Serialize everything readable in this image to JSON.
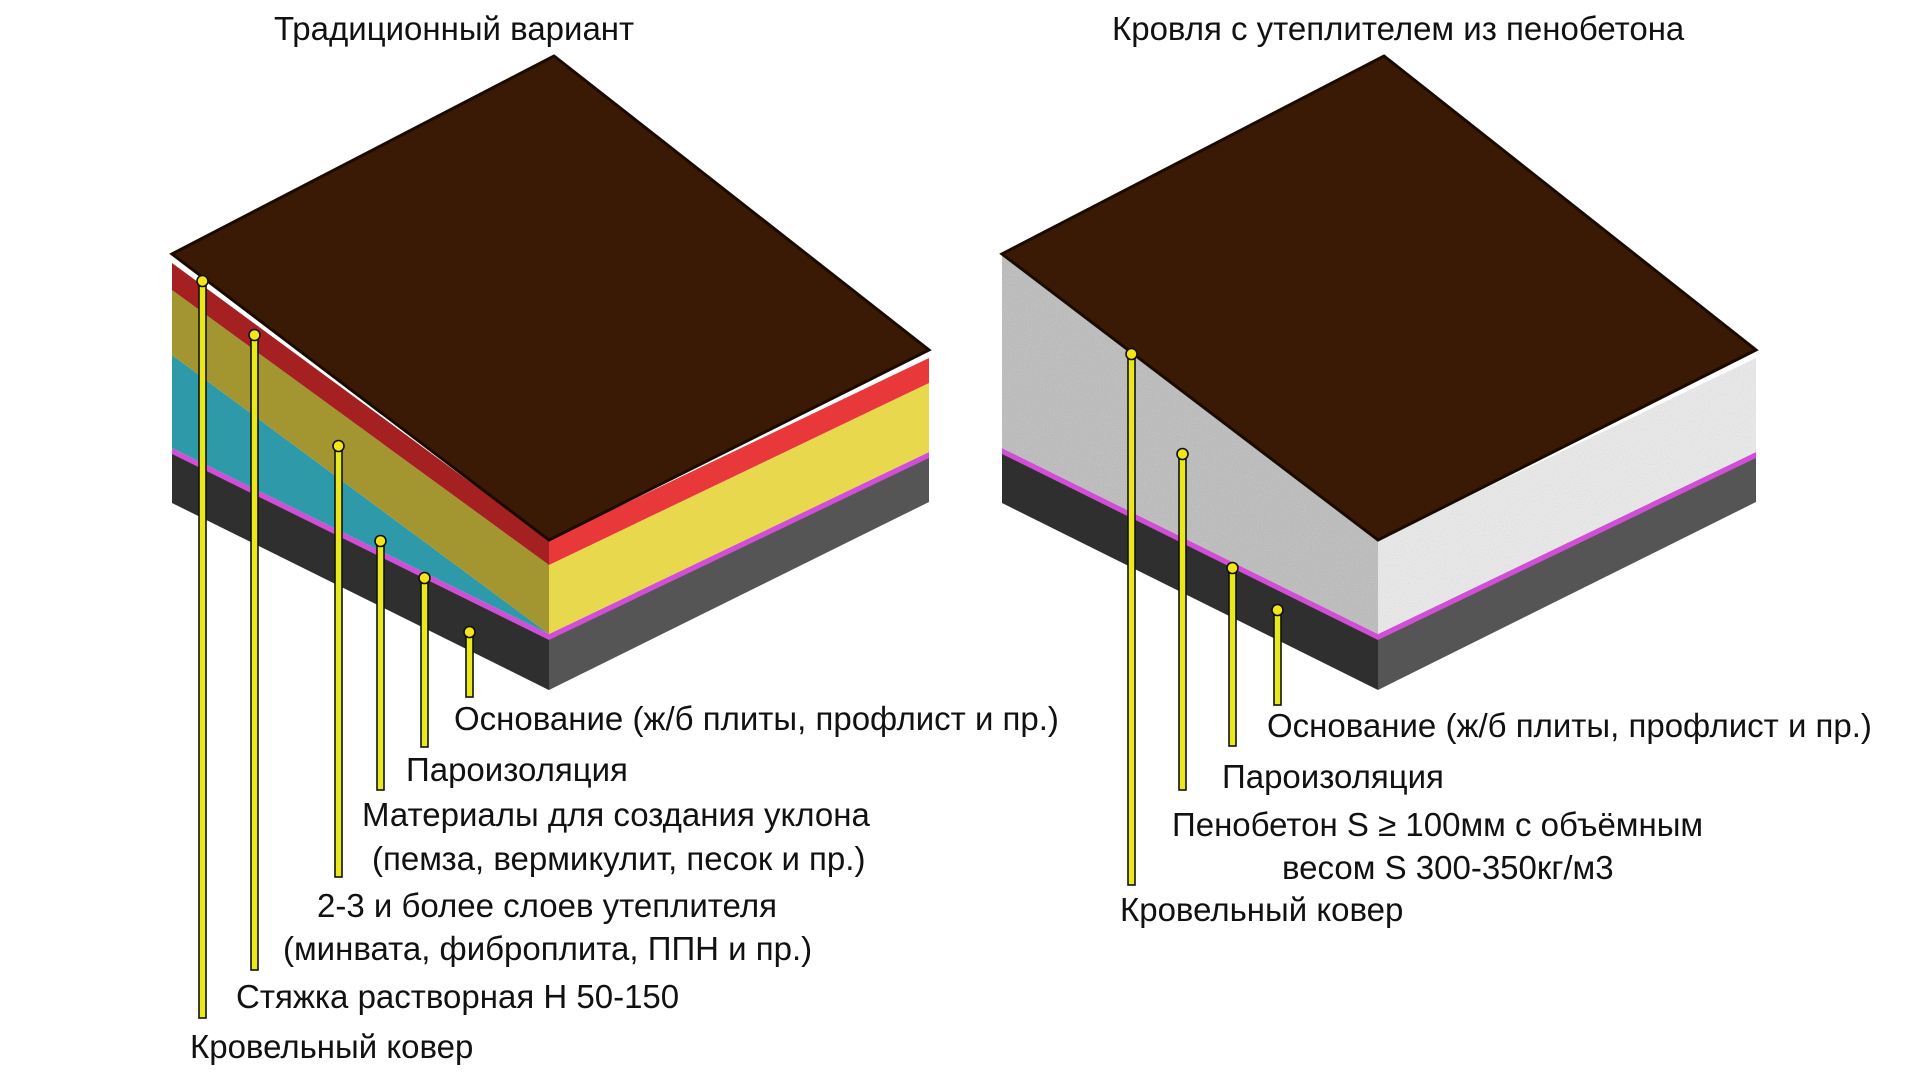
{
  "left": {
    "title": "Традиционный вариант",
    "labels": [
      "Основание (ж/б плиты, профлист и пр.)",
      "Пароизоляция",
      "Материалы для создания уклона",
      "(пемза, вермикулит, песок и пр.)",
      "2-3 и более слоев утеплителя",
      "(минвата, фиброплита, ППН и пр.)",
      "Стяжка растворная Н 50-150",
      "Кровельный ковер"
    ]
  },
  "right": {
    "title": "Кровля с утеплителем из пенобетона",
    "labels": [
      "Основание (ж/б плиты, профлист и пр.)",
      "Пароизоляция",
      "Пенобетон S ≥ 100мм с объёмным",
      "весом S 300-350кг/м3",
      "Кровельный ковер"
    ]
  },
  "colors": {
    "roof": "#3b1a05",
    "red": "#e8383a",
    "red_dark": "#a52020",
    "yellow": "#e8d84e",
    "olive": "#a39630",
    "teal": "#2e99a8",
    "magenta": "#d04fd6",
    "base_light": "#555555",
    "base_dark": "#2f2f2f",
    "foam_light": "#ededed",
    "foam_dark": "#bdbdbd",
    "leader": "#f2e51a"
  }
}
